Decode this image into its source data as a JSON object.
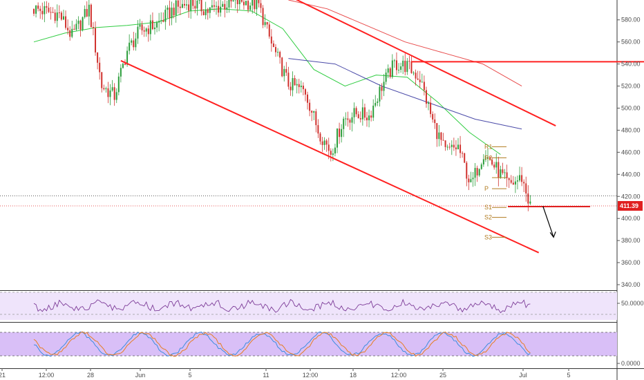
{
  "chart_data": [
    {
      "type": "candlestick",
      "panel": "price",
      "y_ticks": [
        "580.00",
        "560.00",
        "540.00",
        "520.00",
        "500.00",
        "480.00",
        "460.00",
        "440.00",
        "420.00",
        "400.00",
        "380.00",
        "360.00",
        "340.00"
      ],
      "ylim": [
        335,
        598
      ],
      "x_ticks": [
        "21",
        "12:00",
        "28",
        "Jun",
        "5",
        "11",
        "12:00",
        "18",
        "12:00",
        "25",
        "Jul",
        "5"
      ],
      "last_price_label": "411.39",
      "last_price": 411.39,
      "reference_price": 420.5,
      "horizontal_resistance": 542,
      "pivot_labels": [
        {
          "label": "R1",
          "value": 465
        },
        {
          "label": "R2",
          "value": 455
        },
        {
          "label": "P",
          "value": 427
        },
        {
          "label": "S1",
          "value": 410
        },
        {
          "label": "S2",
          "value": 401
        },
        {
          "label": "S3",
          "value": 383
        }
      ],
      "pivot_unlabeled_level": 437,
      "price_path": [
        {
          "bar": 0,
          "value": 590
        },
        {
          "bar": 12,
          "value": 585
        },
        {
          "bar": 18,
          "value": 565
        },
        {
          "bar": 26,
          "value": 590
        },
        {
          "bar": 32,
          "value": 520
        },
        {
          "bar": 38,
          "value": 511
        },
        {
          "bar": 44,
          "value": 552
        },
        {
          "bar": 50,
          "value": 570
        },
        {
          "bar": 58,
          "value": 576
        },
        {
          "bar": 66,
          "value": 590
        },
        {
          "bar": 74,
          "value": 596
        },
        {
          "bar": 82,
          "value": 588
        },
        {
          "bar": 90,
          "value": 594
        },
        {
          "bar": 98,
          "value": 597
        },
        {
          "bar": 106,
          "value": 593
        },
        {
          "bar": 112,
          "value": 558
        },
        {
          "bar": 120,
          "value": 522
        },
        {
          "bar": 128,
          "value": 515
        },
        {
          "bar": 134,
          "value": 480
        },
        {
          "bar": 140,
          "value": 460
        },
        {
          "bar": 146,
          "value": 490
        },
        {
          "bar": 152,
          "value": 495
        },
        {
          "bar": 158,
          "value": 493
        },
        {
          "bar": 164,
          "value": 520
        },
        {
          "bar": 170,
          "value": 540
        },
        {
          "bar": 176,
          "value": 538
        },
        {
          "bar": 182,
          "value": 527
        },
        {
          "bar": 188,
          "value": 488
        },
        {
          "bar": 194,
          "value": 460
        },
        {
          "bar": 200,
          "value": 465
        },
        {
          "bar": 206,
          "value": 430
        },
        {
          "bar": 212,
          "value": 460
        },
        {
          "bar": 218,
          "value": 445
        },
        {
          "bar": 224,
          "value": 430
        },
        {
          "bar": 230,
          "value": 437
        },
        {
          "bar": 234,
          "value": 411
        }
      ],
      "series": [
        {
          "name": "",
          "color": "#2ecc40",
          "values": [
            560,
            568,
            573,
            575,
            578,
            588,
            590,
            588,
            572,
            535,
            520,
            530,
            528,
            505,
            478,
            458
          ]
        },
        {
          "name": "",
          "color": "#4a4aa8",
          "values": [
            545,
            540,
            520,
            505,
            490,
            481
          ]
        },
        {
          "name": "",
          "color": "#e84a4a",
          "values": [
            598,
            590,
            575,
            560,
            550,
            540,
            520
          ]
        }
      ],
      "trendlines": [
        {
          "color": "#ff2020",
          "from": {
            "bar": 41,
            "value": 543
          },
          "to": {
            "bar": 238,
            "value": 369
          }
        },
        {
          "color": "#ff2020",
          "from": {
            "bar": 122,
            "value": 600
          },
          "to": {
            "bar": 246,
            "value": 484
          }
        },
        {
          "color": "#ff2020",
          "from": {
            "bar": 178,
            "value": 542
          },
          "to": {
            "bar": 290,
            "value": 542
          }
        }
      ],
      "projection": {
        "from": {
          "bar": 240,
          "value": 411
        },
        "to": {
          "bar": 245,
          "value": 383
        },
        "color": "#000000"
      }
    },
    {
      "type": "line",
      "panel": "rsi",
      "y_tick": "50.0000",
      "color": "#7d3c98",
      "fill": "#efe4fb"
    },
    {
      "type": "line",
      "panel": "stochastic",
      "y_tick": "0.0000",
      "series_colors": [
        "#3c8dde",
        "#e67e22"
      ],
      "fill": "#d9bff7"
    }
  ]
}
